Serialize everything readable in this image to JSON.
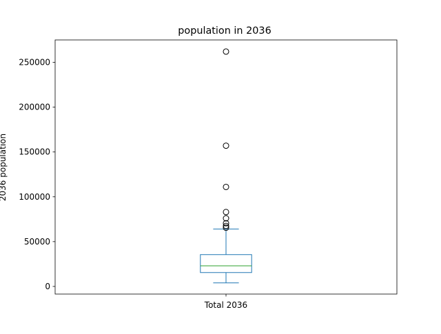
{
  "chart_data": {
    "type": "box",
    "title": "population in 2036",
    "xlabel": "",
    "ylabel": "2036 population",
    "categories": [
      "Total 2036"
    ],
    "ylim": [
      -8500,
      275000
    ],
    "yticks": [
      0,
      50000,
      100000,
      150000,
      200000,
      250000
    ],
    "ytick_labels": [
      "0",
      "50000",
      "100000",
      "150000",
      "200000",
      "250000"
    ],
    "grid": false,
    "series": [
      {
        "category": "Total 2036",
        "whisker_low": 4000,
        "q1": 15500,
        "median": 23000,
        "q3": 35500,
        "whisker_high": 64000,
        "outliers": [
          65500,
          67500,
          70500,
          76000,
          83000,
          111000,
          157000,
          262000
        ]
      }
    ],
    "colors": {
      "box": "#1f77b4",
      "median": "#2ca02c",
      "outlier": "#000000",
      "axis": "#000000"
    }
  }
}
